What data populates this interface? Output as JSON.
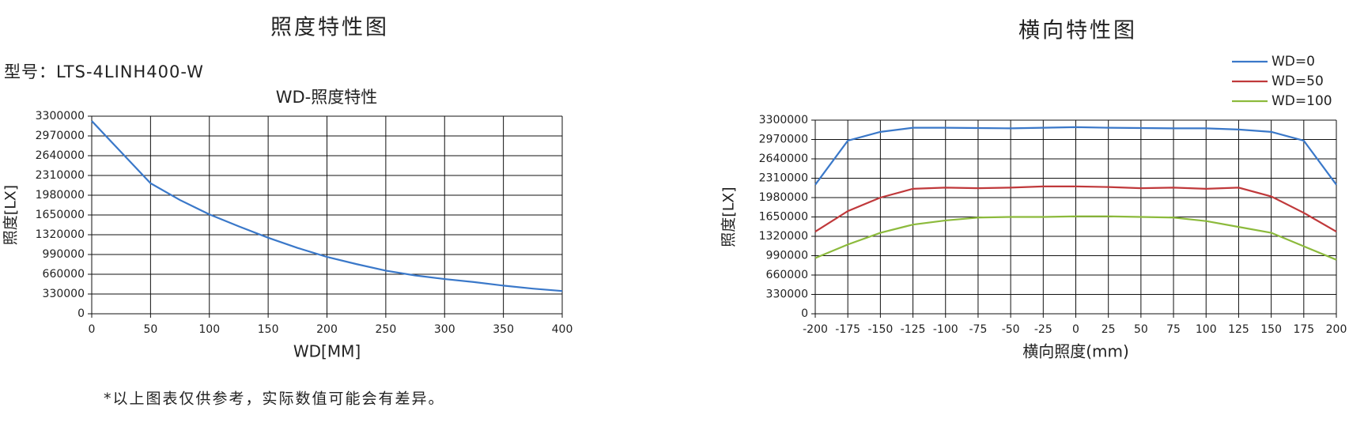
{
  "chart_data": [
    {
      "type": "line",
      "page_title": "照度特性图",
      "model_label": "型号：LTS-4LINH400-W",
      "title": "WD-照度特性",
      "x_label": "WD[MM]",
      "y_label": "照度[LX]",
      "x": [
        0,
        25,
        50,
        75,
        100,
        125,
        150,
        175,
        200,
        225,
        250,
        275,
        300,
        325,
        350,
        375,
        400
      ],
      "values": [
        3220000,
        2700000,
        2180000,
        1900000,
        1660000,
        1460000,
        1270000,
        1100000,
        950000,
        830000,
        720000,
        640000,
        580000,
        530000,
        470000,
        420000,
        380000
      ],
      "color": "#3a78c9",
      "xlim": [
        0,
        400
      ],
      "xticks": [
        0,
        50,
        100,
        150,
        200,
        250,
        300,
        350,
        400
      ],
      "ylim": [
        0,
        3300000
      ],
      "yticks": [
        0,
        330000,
        660000,
        990000,
        1320000,
        1650000,
        1980000,
        2310000,
        2640000,
        2970000,
        3300000
      ],
      "grid": true
    },
    {
      "type": "line",
      "page_title": "横向特性图",
      "x_label": "横向照度(mm)",
      "y_label": "照度[LX]",
      "x": [
        -200,
        -175,
        -150,
        -125,
        -100,
        -75,
        -50,
        -25,
        0,
        25,
        50,
        75,
        100,
        125,
        150,
        175,
        200
      ],
      "series": [
        {
          "name": "WD=0",
          "color": "#3a78c9",
          "values": [
            2200000,
            2950000,
            3100000,
            3170000,
            3170000,
            3165000,
            3160000,
            3170000,
            3180000,
            3170000,
            3165000,
            3160000,
            3160000,
            3140000,
            3100000,
            2950000,
            2200000
          ]
        },
        {
          "name": "WD=50",
          "color": "#c0393b",
          "values": [
            1400000,
            1750000,
            1980000,
            2130000,
            2150000,
            2140000,
            2150000,
            2170000,
            2170000,
            2160000,
            2140000,
            2150000,
            2130000,
            2150000,
            2000000,
            1720000,
            1400000
          ]
        },
        {
          "name": "WD=100",
          "color": "#8cba3c",
          "values": [
            950000,
            1180000,
            1380000,
            1520000,
            1590000,
            1640000,
            1650000,
            1650000,
            1660000,
            1660000,
            1650000,
            1640000,
            1580000,
            1480000,
            1380000,
            1150000,
            920000
          ]
        }
      ],
      "xlim": [
        -200,
        200
      ],
      "xticks": [
        -200,
        -175,
        -150,
        -125,
        -100,
        -75,
        -50,
        -25,
        0,
        25,
        50,
        75,
        100,
        125,
        150,
        175,
        200
      ],
      "ylim": [
        0,
        3300000
      ],
      "yticks": [
        0,
        330000,
        660000,
        990000,
        1320000,
        1650000,
        1980000,
        2310000,
        2640000,
        2970000,
        3300000
      ],
      "grid": true,
      "legend": "top-right"
    }
  ],
  "footnote": "*以上图表仅供参考，实际数值可能会有差异。"
}
